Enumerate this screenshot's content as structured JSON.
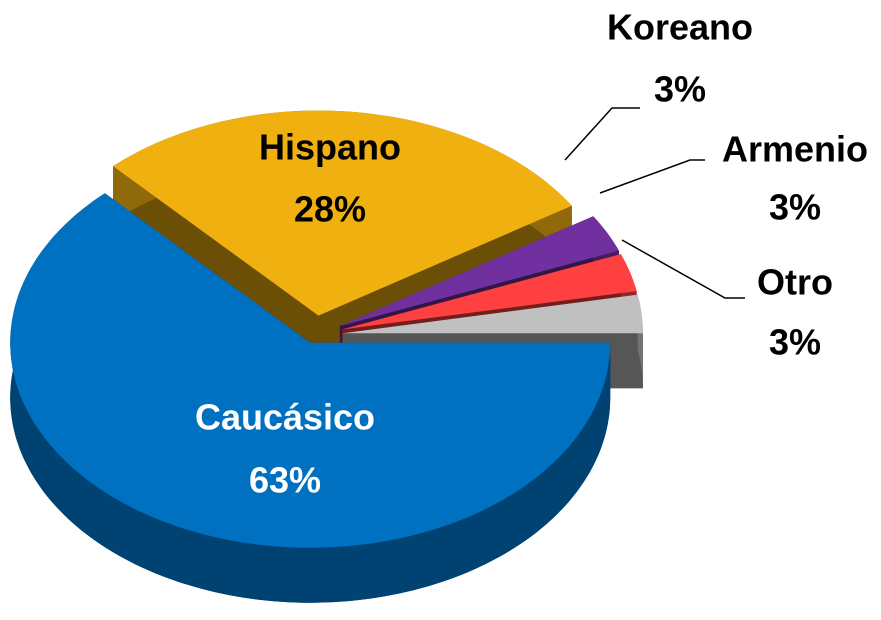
{
  "chart_data": {
    "type": "pie",
    "categories": [
      "Otro",
      "Armenio",
      "Koreano",
      "Hispano",
      "Caucásico"
    ],
    "values": [
      3,
      3,
      3,
      28,
      63
    ],
    "value_labels": [
      "3%",
      "3%",
      "3%",
      "28%",
      "63%"
    ],
    "colors": [
      "#c0c0c0",
      "#ff4040",
      "#7030a0",
      "#f0b010",
      "#0070c0"
    ]
  }
}
